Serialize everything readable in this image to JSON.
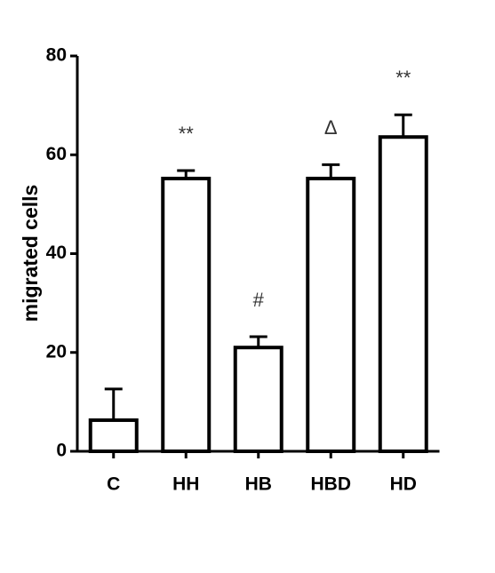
{
  "chart_data": {
    "type": "bar",
    "y_label": "migrated cells",
    "categories": [
      "C",
      "HH",
      "HB",
      "HBD",
      "HD"
    ],
    "values": [
      6.3,
      55.2,
      21,
      55.2,
      63.6
    ],
    "errors": [
      6.3,
      1.6,
      2.2,
      2.8,
      4.5
    ],
    "annotations": [
      null,
      "**",
      "#",
      "Δ",
      "**"
    ],
    "color": "#ffffff",
    "ylim": [
      0,
      80
    ],
    "yticks": [
      0,
      20,
      40,
      60,
      80
    ],
    "grid": false
  }
}
